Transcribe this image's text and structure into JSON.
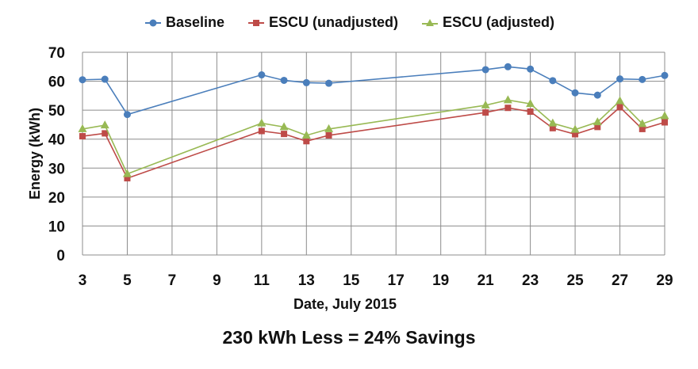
{
  "chart_data": {
    "type": "line",
    "title": "",
    "xlabel": "Date, July 2015",
    "ylabel": "Energy (kWh)",
    "xlim": [
      3,
      29
    ],
    "ylim": [
      0,
      70
    ],
    "x_ticks": [
      3,
      5,
      7,
      9,
      11,
      13,
      15,
      17,
      19,
      21,
      23,
      25,
      27,
      29
    ],
    "y_ticks": [
      0,
      10,
      20,
      30,
      40,
      50,
      60,
      70
    ],
    "grid": true,
    "legend_position": "top-center",
    "x": [
      3,
      4,
      5,
      11,
      12,
      13,
      14,
      21,
      22,
      23,
      24,
      25,
      26,
      27,
      28,
      29
    ],
    "series": [
      {
        "name": "Baseline",
        "color": "#4a7ebb",
        "marker": "circle",
        "values": [
          60.5,
          60.7,
          48.5,
          62.2,
          60.3,
          59.5,
          59.3,
          64.0,
          65.0,
          64.2,
          60.2,
          56.0,
          55.2,
          60.8,
          60.6,
          62.0
        ]
      },
      {
        "name": "ESCU (unadjusted)",
        "color": "#be4b48",
        "marker": "square",
        "values": [
          41.0,
          42.0,
          26.5,
          42.8,
          41.8,
          39.3,
          41.3,
          49.2,
          50.8,
          49.5,
          43.8,
          41.7,
          44.2,
          51.0,
          43.5,
          45.8
        ]
      },
      {
        "name": "ESCU (adjusted)",
        "color": "#98b954",
        "marker": "triangle",
        "values": [
          43.5,
          44.8,
          28.0,
          45.5,
          44.2,
          41.3,
          43.5,
          51.7,
          53.5,
          52.2,
          45.5,
          43.3,
          45.9,
          53.2,
          45.3,
          48.0
        ]
      }
    ],
    "annotation": "230 kWh Less = 24%  Savings"
  }
}
